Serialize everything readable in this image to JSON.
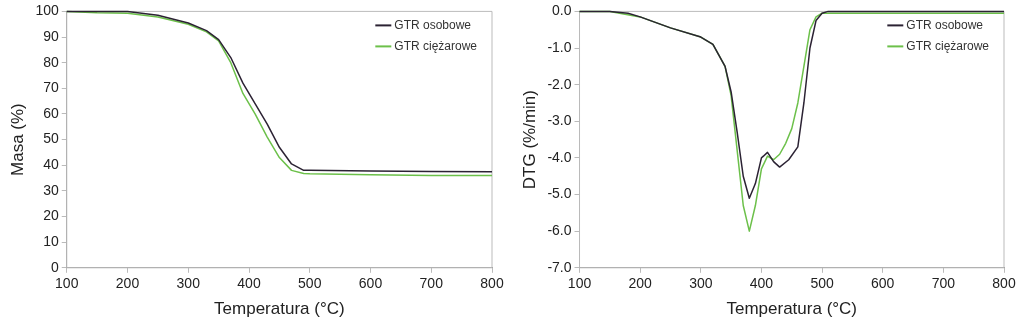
{
  "chart_data": [
    {
      "type": "line",
      "xlabel": "Temperatura (°C)",
      "ylabel": "Masa (%)",
      "xlim": [
        100,
        800
      ],
      "xticks": [
        100,
        200,
        300,
        400,
        500,
        600,
        700,
        800
      ],
      "ylim": [
        0,
        100
      ],
      "yticks": [
        0,
        10,
        20,
        30,
        40,
        50,
        60,
        70,
        80,
        90,
        100
      ],
      "grid": false,
      "legend": "top right",
      "marker": "none",
      "line_style": "solid",
      "series": [
        {
          "name": "GTR osobowe",
          "color": "#2b2233",
          "x": [
            100,
            150,
            200,
            250,
            300,
            330,
            350,
            370,
            390,
            410,
            430,
            450,
            470,
            490,
            500,
            600,
            700,
            800
          ],
          "values": [
            100,
            100,
            100,
            98.5,
            95.5,
            92.5,
            89,
            82,
            72,
            64,
            56,
            47,
            40.5,
            38,
            38,
            37.8,
            37.6,
            37.5
          ]
        },
        {
          "name": "GTR ciężarowe",
          "color": "#6cc04a",
          "x": [
            100,
            150,
            200,
            250,
            300,
            330,
            350,
            370,
            390,
            410,
            430,
            450,
            470,
            490,
            500,
            600,
            700,
            800
          ],
          "values": [
            100,
            99.5,
            99.3,
            97.8,
            95,
            92,
            88.5,
            80,
            68,
            60,
            51,
            43,
            38,
            36.8,
            36.7,
            36.3,
            36,
            36
          ]
        }
      ]
    },
    {
      "type": "line",
      "xlabel": "Temperatura (°C)",
      "ylabel": "DTG (%/min)",
      "xlim": [
        100,
        800
      ],
      "xticks": [
        100,
        200,
        300,
        400,
        500,
        600,
        700,
        800
      ],
      "ylim": [
        -7,
        0
      ],
      "yticks": [
        {
          "value": -7,
          "label": "-7.0"
        },
        {
          "value": -6,
          "label": "-6.0"
        },
        {
          "value": -5,
          "label": "-5.0"
        },
        {
          "value": -4,
          "label": "-4.0"
        },
        {
          "value": -3,
          "label": "-3.0"
        },
        {
          "value": -2,
          "label": "-2.0"
        },
        {
          "value": -1,
          "label": "-1.0"
        },
        {
          "value": 0,
          "label": "0.0"
        }
      ],
      "grid": false,
      "legend": "top right",
      "marker": "none",
      "line_style": "solid",
      "series": [
        {
          "name": "GTR osobowe",
          "color": "#2b2233",
          "x": [
            100,
            150,
            180,
            200,
            250,
            300,
            320,
            340,
            350,
            360,
            370,
            380,
            390,
            400,
            410,
            420,
            430,
            445,
            460,
            470,
            480,
            490,
            500,
            510,
            600,
            700,
            800
          ],
          "values": [
            0,
            0,
            -0.05,
            -0.15,
            -0.45,
            -0.7,
            -0.9,
            -1.5,
            -2.2,
            -3.3,
            -4.5,
            -5.1,
            -4.7,
            -4,
            -3.85,
            -4.1,
            -4.25,
            -4.05,
            -3.7,
            -2.5,
            -1,
            -0.25,
            -0.05,
            0,
            0,
            0,
            0
          ]
        },
        {
          "name": "GTR ciężarowe",
          "color": "#6cc04a",
          "x": [
            100,
            150,
            200,
            250,
            300,
            320,
            340,
            350,
            360,
            370,
            380,
            390,
            400,
            410,
            420,
            430,
            440,
            450,
            460,
            470,
            480,
            490,
            500,
            510,
            600,
            700,
            800
          ],
          "values": [
            0,
            0,
            -0.15,
            -0.45,
            -0.7,
            -0.9,
            -1.5,
            -2.3,
            -3.8,
            -5.3,
            -6,
            -5.3,
            -4.3,
            -3.95,
            -4.05,
            -3.9,
            -3.6,
            -3.2,
            -2.5,
            -1.5,
            -0.5,
            -0.15,
            -0.05,
            -0.05,
            -0.05,
            -0.05,
            -0.05
          ]
        }
      ]
    }
  ]
}
